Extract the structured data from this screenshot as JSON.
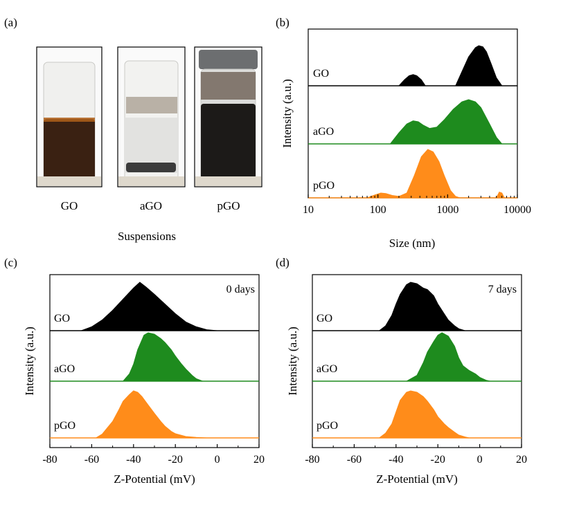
{
  "panel_a": {
    "label": "(a)",
    "vials": [
      {
        "label": "GO",
        "liquid": "#3a2112",
        "liquid_frac": 0.55,
        "cap": false
      },
      {
        "label": "aGO",
        "liquid": "#e4e4e2",
        "liquid_frac": 0.45,
        "cap": false
      },
      {
        "label": "pGO",
        "liquid": "#1c1a18",
        "liquid_frac": 0.62,
        "cap": true
      }
    ],
    "caption": "Suspensions"
  },
  "chart_data": [
    {
      "id": "b",
      "type": "area",
      "panel_label": "(b)",
      "xlabel": "Size (nm)",
      "ylabel": "Intensity (a.u.)",
      "xscale": "log",
      "xlim": [
        10,
        10000
      ],
      "xticks": [
        10,
        100,
        1000,
        10000
      ],
      "xtick_labels": [
        "10",
        "100",
        "1000",
        "10000"
      ],
      "series": [
        {
          "name": "GO",
          "color": "#000000",
          "x": [
            200,
            240,
            280,
            320,
            360,
            420,
            480,
            700,
            1300,
            1600,
            2000,
            2500,
            2800,
            3200,
            3600,
            4200,
            5000,
            6000
          ],
          "y": [
            0,
            0.15,
            0.25,
            0.28,
            0.25,
            0.15,
            0,
            0,
            0,
            0.35,
            0.72,
            0.95,
            1.0,
            0.97,
            0.85,
            0.55,
            0.2,
            0
          ]
        },
        {
          "name": "aGO",
          "color": "#1e8b1e",
          "x": [
            150,
            200,
            260,
            320,
            380,
            450,
            550,
            700,
            900,
            1200,
            1600,
            2000,
            2500,
            3000,
            4000,
            5000,
            6000
          ],
          "y": [
            0,
            0.25,
            0.45,
            0.52,
            0.5,
            0.42,
            0.35,
            0.38,
            0.55,
            0.78,
            0.95,
            1.0,
            0.95,
            0.82,
            0.45,
            0.15,
            0
          ]
        },
        {
          "name": "pGO",
          "color": "#ff8c1a",
          "x": [
            70,
            90,
            110,
            130,
            160,
            200,
            260,
            330,
            420,
            520,
            620,
            750,
            900,
            1100,
            1300,
            1500,
            5000,
            5500,
            6000,
            6500
          ],
          "y": [
            0,
            0.06,
            0.1,
            0.09,
            0.05,
            0.03,
            0.1,
            0.45,
            0.85,
            1.0,
            0.95,
            0.75,
            0.45,
            0.15,
            0.03,
            0,
            0,
            0.12,
            0.1,
            0
          ]
        }
      ]
    },
    {
      "id": "c",
      "type": "area",
      "panel_label": "(c)",
      "xlabel": "Z-Potential (mV)",
      "ylabel": "Intensity (a.u.)",
      "annotation": "0 days",
      "xlim": [
        -80,
        20
      ],
      "xticks": [
        -80,
        -60,
        -40,
        -20,
        0,
        20
      ],
      "series": [
        {
          "name": "GO",
          "color": "#000000",
          "x": [
            -65,
            -60,
            -55,
            -50,
            -45,
            -40,
            -37,
            -34,
            -30,
            -25,
            -20,
            -15,
            -10,
            -5,
            0
          ],
          "y": [
            0,
            0.08,
            0.22,
            0.42,
            0.65,
            0.88,
            1.0,
            0.9,
            0.75,
            0.55,
            0.35,
            0.18,
            0.08,
            0.02,
            0
          ]
        },
        {
          "name": "aGO",
          "color": "#1e8b1e",
          "x": [
            -45,
            -42,
            -40,
            -38,
            -35,
            -33,
            -30,
            -27,
            -25,
            -22,
            -20,
            -17,
            -15,
            -12,
            -10,
            -7
          ],
          "y": [
            0,
            0.15,
            0.35,
            0.65,
            0.95,
            1.0,
            0.97,
            0.88,
            0.8,
            0.65,
            0.52,
            0.35,
            0.25,
            0.12,
            0.05,
            0
          ]
        },
        {
          "name": "pGO",
          "color": "#ff8c1a",
          "x": [
            -58,
            -55,
            -50,
            -47,
            -45,
            -42,
            -40,
            -38,
            -36,
            -33,
            -30,
            -27,
            -25,
            -22,
            -20,
            -15,
            -10,
            -5
          ],
          "y": [
            0,
            0.08,
            0.35,
            0.6,
            0.78,
            0.92,
            1.0,
            0.97,
            0.88,
            0.7,
            0.52,
            0.35,
            0.25,
            0.14,
            0.09,
            0.03,
            0.01,
            0
          ]
        }
      ]
    },
    {
      "id": "d",
      "type": "area",
      "panel_label": "(d)",
      "xlabel": "Z-Potential (mV)",
      "ylabel": "Intensity (a.u.)",
      "annotation": "7 days",
      "xlim": [
        -80,
        20
      ],
      "xticks": [
        -80,
        -60,
        -40,
        -20,
        0,
        20
      ],
      "series": [
        {
          "name": "GO",
          "color": "#000000",
          "x": [
            -48,
            -45,
            -42,
            -40,
            -38,
            -35,
            -33,
            -30,
            -27,
            -25,
            -22,
            -20,
            -17,
            -15,
            -12,
            -10,
            -7
          ],
          "y": [
            0,
            0.1,
            0.32,
            0.55,
            0.75,
            0.95,
            1.0,
            0.97,
            0.88,
            0.85,
            0.72,
            0.55,
            0.35,
            0.22,
            0.1,
            0.04,
            0
          ]
        },
        {
          "name": "aGO",
          "color": "#1e8b1e",
          "x": [
            -35,
            -30,
            -27,
            -25,
            -22,
            -20,
            -18,
            -15,
            -12,
            -10,
            -8,
            -5,
            -2,
            0,
            3,
            5
          ],
          "y": [
            0,
            0.12,
            0.38,
            0.6,
            0.82,
            0.95,
            1.0,
            0.93,
            0.72,
            0.48,
            0.32,
            0.22,
            0.15,
            0.08,
            0.02,
            0
          ]
        },
        {
          "name": "pGO",
          "color": "#ff8c1a",
          "x": [
            -48,
            -45,
            -42,
            -40,
            -38,
            -35,
            -33,
            -30,
            -27,
            -25,
            -22,
            -20,
            -17,
            -15,
            -12,
            -10,
            -7,
            -5
          ],
          "y": [
            0,
            0.1,
            0.3,
            0.55,
            0.8,
            0.97,
            1.0,
            0.97,
            0.88,
            0.78,
            0.6,
            0.45,
            0.3,
            0.22,
            0.12,
            0.06,
            0.02,
            0
          ]
        }
      ]
    }
  ]
}
